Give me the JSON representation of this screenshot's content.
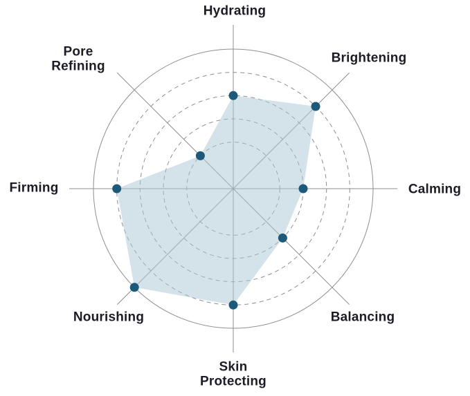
{
  "chart_data": {
    "type": "radar",
    "categories": [
      "Hydrating",
      "Brightening",
      "Calming",
      "Balancing",
      "Skin Protecting",
      "Nourishing",
      "Firming",
      "Pore Refining"
    ],
    "values": [
      4,
      5,
      3,
      3,
      5,
      6,
      5,
      2
    ],
    "scale": {
      "min": 0,
      "max": 6,
      "dashed_ring_levels": [
        2,
        3,
        4,
        5
      ],
      "solid_ring_level": 6
    },
    "start_axis": "top",
    "direction": "clockwise",
    "grid": "circular",
    "legend": "none",
    "tick_labels": "none",
    "colors": {
      "fill": "rgba(170, 198, 213, 0.5)",
      "point": "#1d5a7a",
      "grid_line": "#8e8e8e",
      "label_text": "#1c1c26",
      "background": "#ffffff"
    }
  }
}
